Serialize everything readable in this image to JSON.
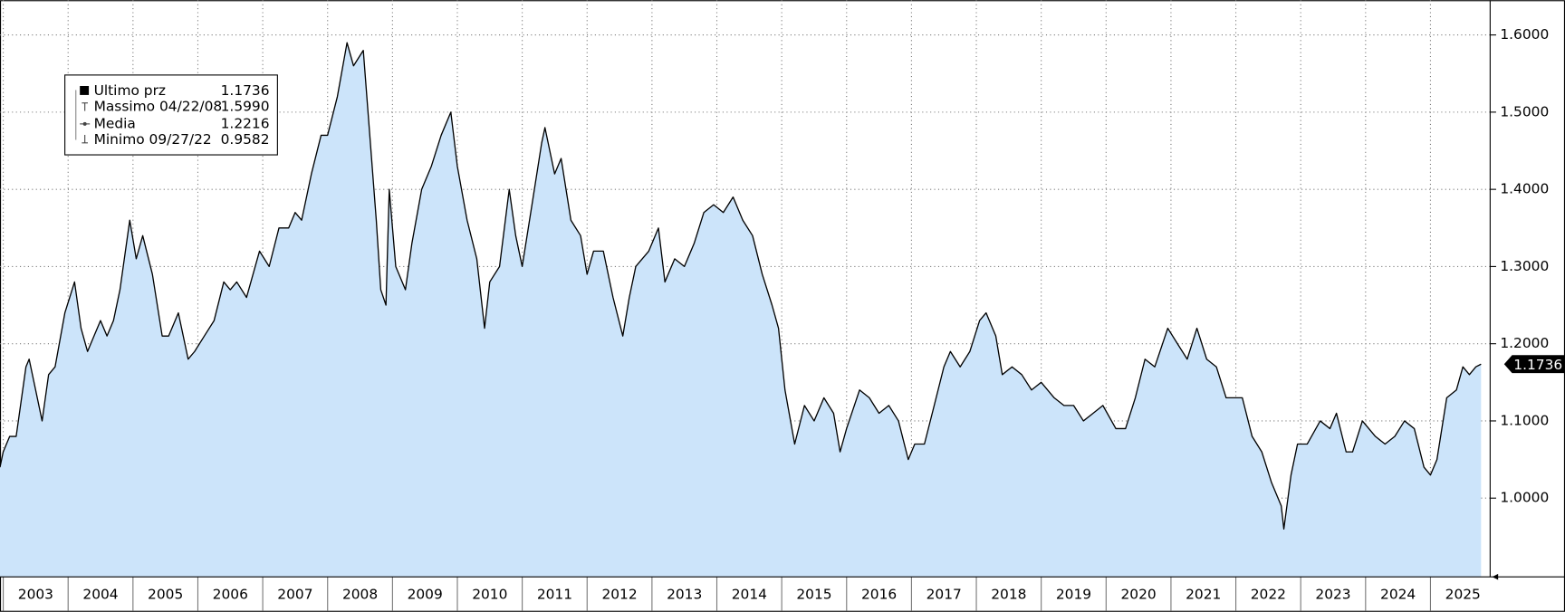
{
  "chart_data": {
    "type": "area",
    "x": [
      2002.95,
      2003.0,
      2003.1,
      2003.2,
      2003.35,
      2003.4,
      2003.5,
      2003.6,
      2003.7,
      2003.8,
      2003.95,
      2004.1,
      2004.2,
      2004.3,
      2004.4,
      2004.5,
      2004.6,
      2004.7,
      2004.8,
      2004.95,
      2005.05,
      2005.15,
      2005.3,
      2005.45,
      2005.55,
      2005.7,
      2005.85,
      2005.95,
      2006.1,
      2006.25,
      2006.4,
      2006.5,
      2006.6,
      2006.75,
      2006.95,
      2007.1,
      2007.25,
      2007.4,
      2007.5,
      2007.6,
      2007.75,
      2007.9,
      2008.0,
      2008.15,
      2008.3,
      2008.4,
      2008.55,
      2008.65,
      2008.75,
      2008.82,
      2008.9,
      2008.95,
      2009.05,
      2009.2,
      2009.3,
      2009.45,
      2009.6,
      2009.75,
      2009.9,
      2010.0,
      2010.15,
      2010.3,
      2010.42,
      2010.5,
      2010.65,
      2010.8,
      2010.9,
      2011.0,
      2011.15,
      2011.3,
      2011.35,
      2011.5,
      2011.6,
      2011.75,
      2011.9,
      2012.0,
      2012.1,
      2012.25,
      2012.4,
      2012.55,
      2012.65,
      2012.75,
      2012.95,
      2013.1,
      2013.2,
      2013.35,
      2013.5,
      2013.65,
      2013.8,
      2013.95,
      2014.1,
      2014.25,
      2014.4,
      2014.55,
      2014.7,
      2014.85,
      2014.95,
      2015.05,
      2015.2,
      2015.35,
      2015.5,
      2015.65,
      2015.8,
      2015.9,
      2016.0,
      2016.2,
      2016.35,
      2016.5,
      2016.65,
      2016.8,
      2016.95,
      2017.05,
      2017.2,
      2017.35,
      2017.5,
      2017.6,
      2017.75,
      2017.9,
      2018.05,
      2018.15,
      2018.3,
      2018.4,
      2018.55,
      2018.7,
      2018.85,
      2019.0,
      2019.2,
      2019.35,
      2019.5,
      2019.65,
      2019.8,
      2019.95,
      2020.15,
      2020.3,
      2020.45,
      2020.6,
      2020.75,
      2020.95,
      2021.1,
      2021.25,
      2021.4,
      2021.55,
      2021.7,
      2021.85,
      2021.95,
      2022.1,
      2022.25,
      2022.4,
      2022.55,
      2022.7,
      2022.74,
      2022.85,
      2022.95,
      2023.1,
      2023.3,
      2023.45,
      2023.55,
      2023.7,
      2023.8,
      2023.95,
      2024.15,
      2024.3,
      2024.45,
      2024.6,
      2024.75,
      2024.9,
      2025.0,
      2025.1,
      2025.25,
      2025.4,
      2025.5,
      2025.6,
      2025.7,
      2025.78
    ],
    "series": [
      {
        "name": "Ultimo prz",
        "color": "#000000",
        "fill": "#cce4fa",
        "values": [
          1.04,
          1.06,
          1.08,
          1.08,
          1.17,
          1.18,
          1.14,
          1.1,
          1.16,
          1.17,
          1.24,
          1.28,
          1.22,
          1.19,
          1.21,
          1.23,
          1.21,
          1.23,
          1.27,
          1.36,
          1.31,
          1.34,
          1.29,
          1.21,
          1.21,
          1.24,
          1.18,
          1.19,
          1.21,
          1.23,
          1.28,
          1.27,
          1.28,
          1.26,
          1.32,
          1.3,
          1.35,
          1.35,
          1.37,
          1.36,
          1.42,
          1.47,
          1.47,
          1.52,
          1.59,
          1.56,
          1.58,
          1.47,
          1.36,
          1.27,
          1.25,
          1.4,
          1.3,
          1.27,
          1.33,
          1.4,
          1.43,
          1.47,
          1.5,
          1.43,
          1.36,
          1.31,
          1.22,
          1.28,
          1.3,
          1.4,
          1.34,
          1.3,
          1.38,
          1.46,
          1.48,
          1.42,
          1.44,
          1.36,
          1.34,
          1.29,
          1.32,
          1.32,
          1.26,
          1.21,
          1.26,
          1.3,
          1.32,
          1.35,
          1.28,
          1.31,
          1.3,
          1.33,
          1.37,
          1.38,
          1.37,
          1.39,
          1.36,
          1.34,
          1.29,
          1.25,
          1.22,
          1.14,
          1.07,
          1.12,
          1.1,
          1.13,
          1.11,
          1.06,
          1.09,
          1.14,
          1.13,
          1.11,
          1.12,
          1.1,
          1.05,
          1.07,
          1.07,
          1.12,
          1.17,
          1.19,
          1.17,
          1.19,
          1.23,
          1.24,
          1.21,
          1.16,
          1.17,
          1.16,
          1.14,
          1.15,
          1.13,
          1.12,
          1.12,
          1.1,
          1.11,
          1.12,
          1.09,
          1.09,
          1.13,
          1.18,
          1.17,
          1.22,
          1.2,
          1.18,
          1.22,
          1.18,
          1.17,
          1.13,
          1.13,
          1.13,
          1.08,
          1.06,
          1.02,
          0.99,
          0.96,
          1.03,
          1.07,
          1.07,
          1.1,
          1.09,
          1.11,
          1.06,
          1.06,
          1.1,
          1.08,
          1.07,
          1.08,
          1.1,
          1.09,
          1.04,
          1.03,
          1.05,
          1.13,
          1.14,
          1.17,
          1.16,
          1.17,
          1.1736
        ]
      }
    ],
    "xlim": [
      2002.95,
      2025.92
    ],
    "xticks": [
      {
        "value": 2003.5,
        "label": "2003"
      },
      {
        "value": 2004.5,
        "label": "2004"
      },
      {
        "value": 2005.5,
        "label": "2005"
      },
      {
        "value": 2006.5,
        "label": "2006"
      },
      {
        "value": 2007.5,
        "label": "2007"
      },
      {
        "value": 2008.5,
        "label": "2008"
      },
      {
        "value": 2009.5,
        "label": "2009"
      },
      {
        "value": 2010.5,
        "label": "2010"
      },
      {
        "value": 2011.5,
        "label": "2011"
      },
      {
        "value": 2012.5,
        "label": "2012"
      },
      {
        "value": 2013.5,
        "label": "2013"
      },
      {
        "value": 2014.5,
        "label": "2014"
      },
      {
        "value": 2015.5,
        "label": "2015"
      },
      {
        "value": 2016.5,
        "label": "2016"
      },
      {
        "value": 2017.5,
        "label": "2017"
      },
      {
        "value": 2018.5,
        "label": "2018"
      },
      {
        "value": 2019.5,
        "label": "2019"
      },
      {
        "value": 2020.5,
        "label": "2020"
      },
      {
        "value": 2021.5,
        "label": "2021"
      },
      {
        "value": 2022.5,
        "label": "2022"
      },
      {
        "value": 2023.5,
        "label": "2023"
      },
      {
        "value": 2024.5,
        "label": "2024"
      },
      {
        "value": 2025.5,
        "label": "2025"
      }
    ],
    "ylim": [
      0.898,
      1.645
    ],
    "yticks": [
      {
        "value": 1.0,
        "label": "1.0000"
      },
      {
        "value": 1.1,
        "label": "1.1000"
      },
      {
        "value": 1.2,
        "label": "1.2000"
      },
      {
        "value": 1.3,
        "label": "1.3000"
      },
      {
        "value": 1.4,
        "label": "1.4000"
      },
      {
        "value": 1.5,
        "label": "1.5000"
      },
      {
        "value": 1.6,
        "label": "1.6000"
      }
    ],
    "grid": true,
    "stats": [
      {
        "label": "Ultimo prz",
        "value": "1.1736"
      },
      {
        "label": "Massimo 04/22/08",
        "value": "1.5990"
      },
      {
        "label": "Media",
        "value": "1.2216"
      },
      {
        "label": "Minimo 09/27/22",
        "value": "0.9582"
      }
    ]
  }
}
